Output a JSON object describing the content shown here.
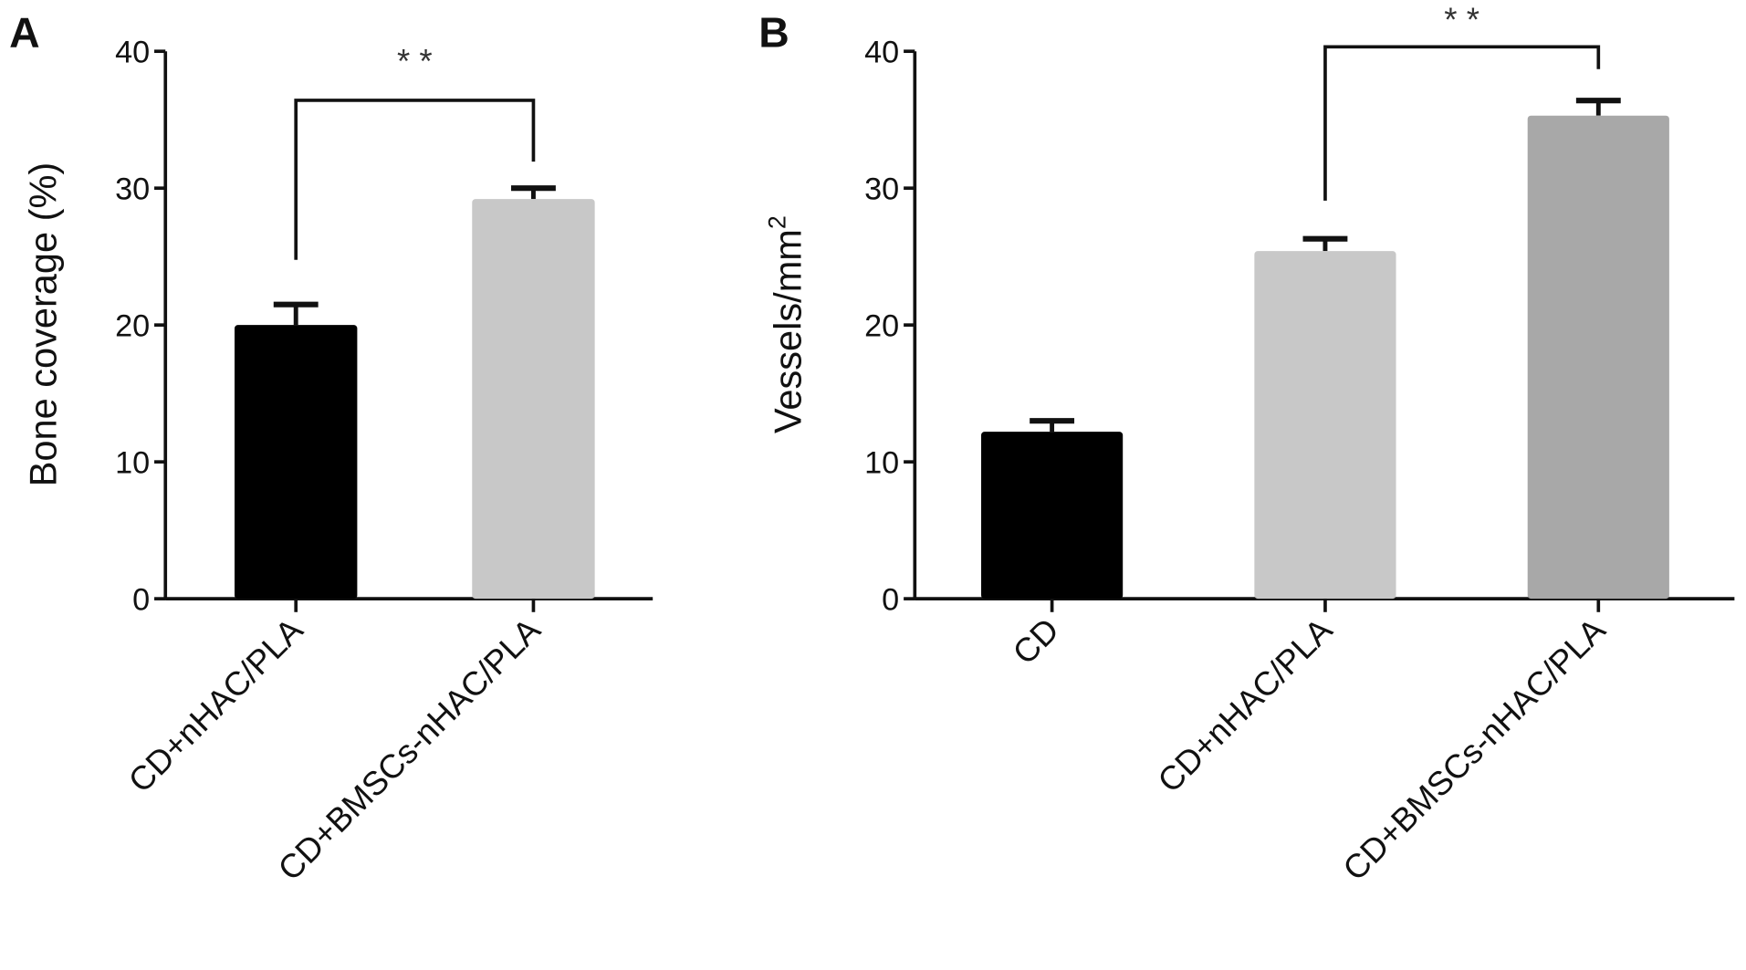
{
  "chart_data": [
    {
      "type": "bar",
      "panel": "A",
      "ylabel": "Bone coverage (%)",
      "xlabel": "",
      "ylim": [
        0,
        40
      ],
      "yticks": [
        0,
        10,
        20,
        30,
        40
      ],
      "categories": [
        "CD+nHAC/PLA",
        "CD+BMSCs-nHAC/PLA"
      ],
      "values": [
        20.0,
        29.2
      ],
      "error_upper": [
        21.5,
        30.0
      ],
      "colors": [
        "#000000",
        "#c8c8c8"
      ],
      "significance": [
        {
          "from": 0,
          "to": 1,
          "label": "* *"
        }
      ]
    },
    {
      "type": "bar",
      "panel": "B",
      "ylabel": "Vessels/mm",
      "ylabel_sup": "2",
      "xlabel": "",
      "ylim": [
        0,
        40
      ],
      "yticks": [
        0,
        10,
        20,
        30,
        40
      ],
      "categories": [
        "CD",
        "CD+nHAC/PLA",
        "CD+BMSCs-nHAC/PLA"
      ],
      "values": [
        12.2,
        25.4,
        35.3
      ],
      "error_upper": [
        13.0,
        26.3,
        36.4
      ],
      "colors": [
        "#000000",
        "#c8c8c8",
        "#a8a8a8"
      ],
      "significance": [
        {
          "from": 1,
          "to": 2,
          "label": "* *"
        }
      ]
    }
  ]
}
